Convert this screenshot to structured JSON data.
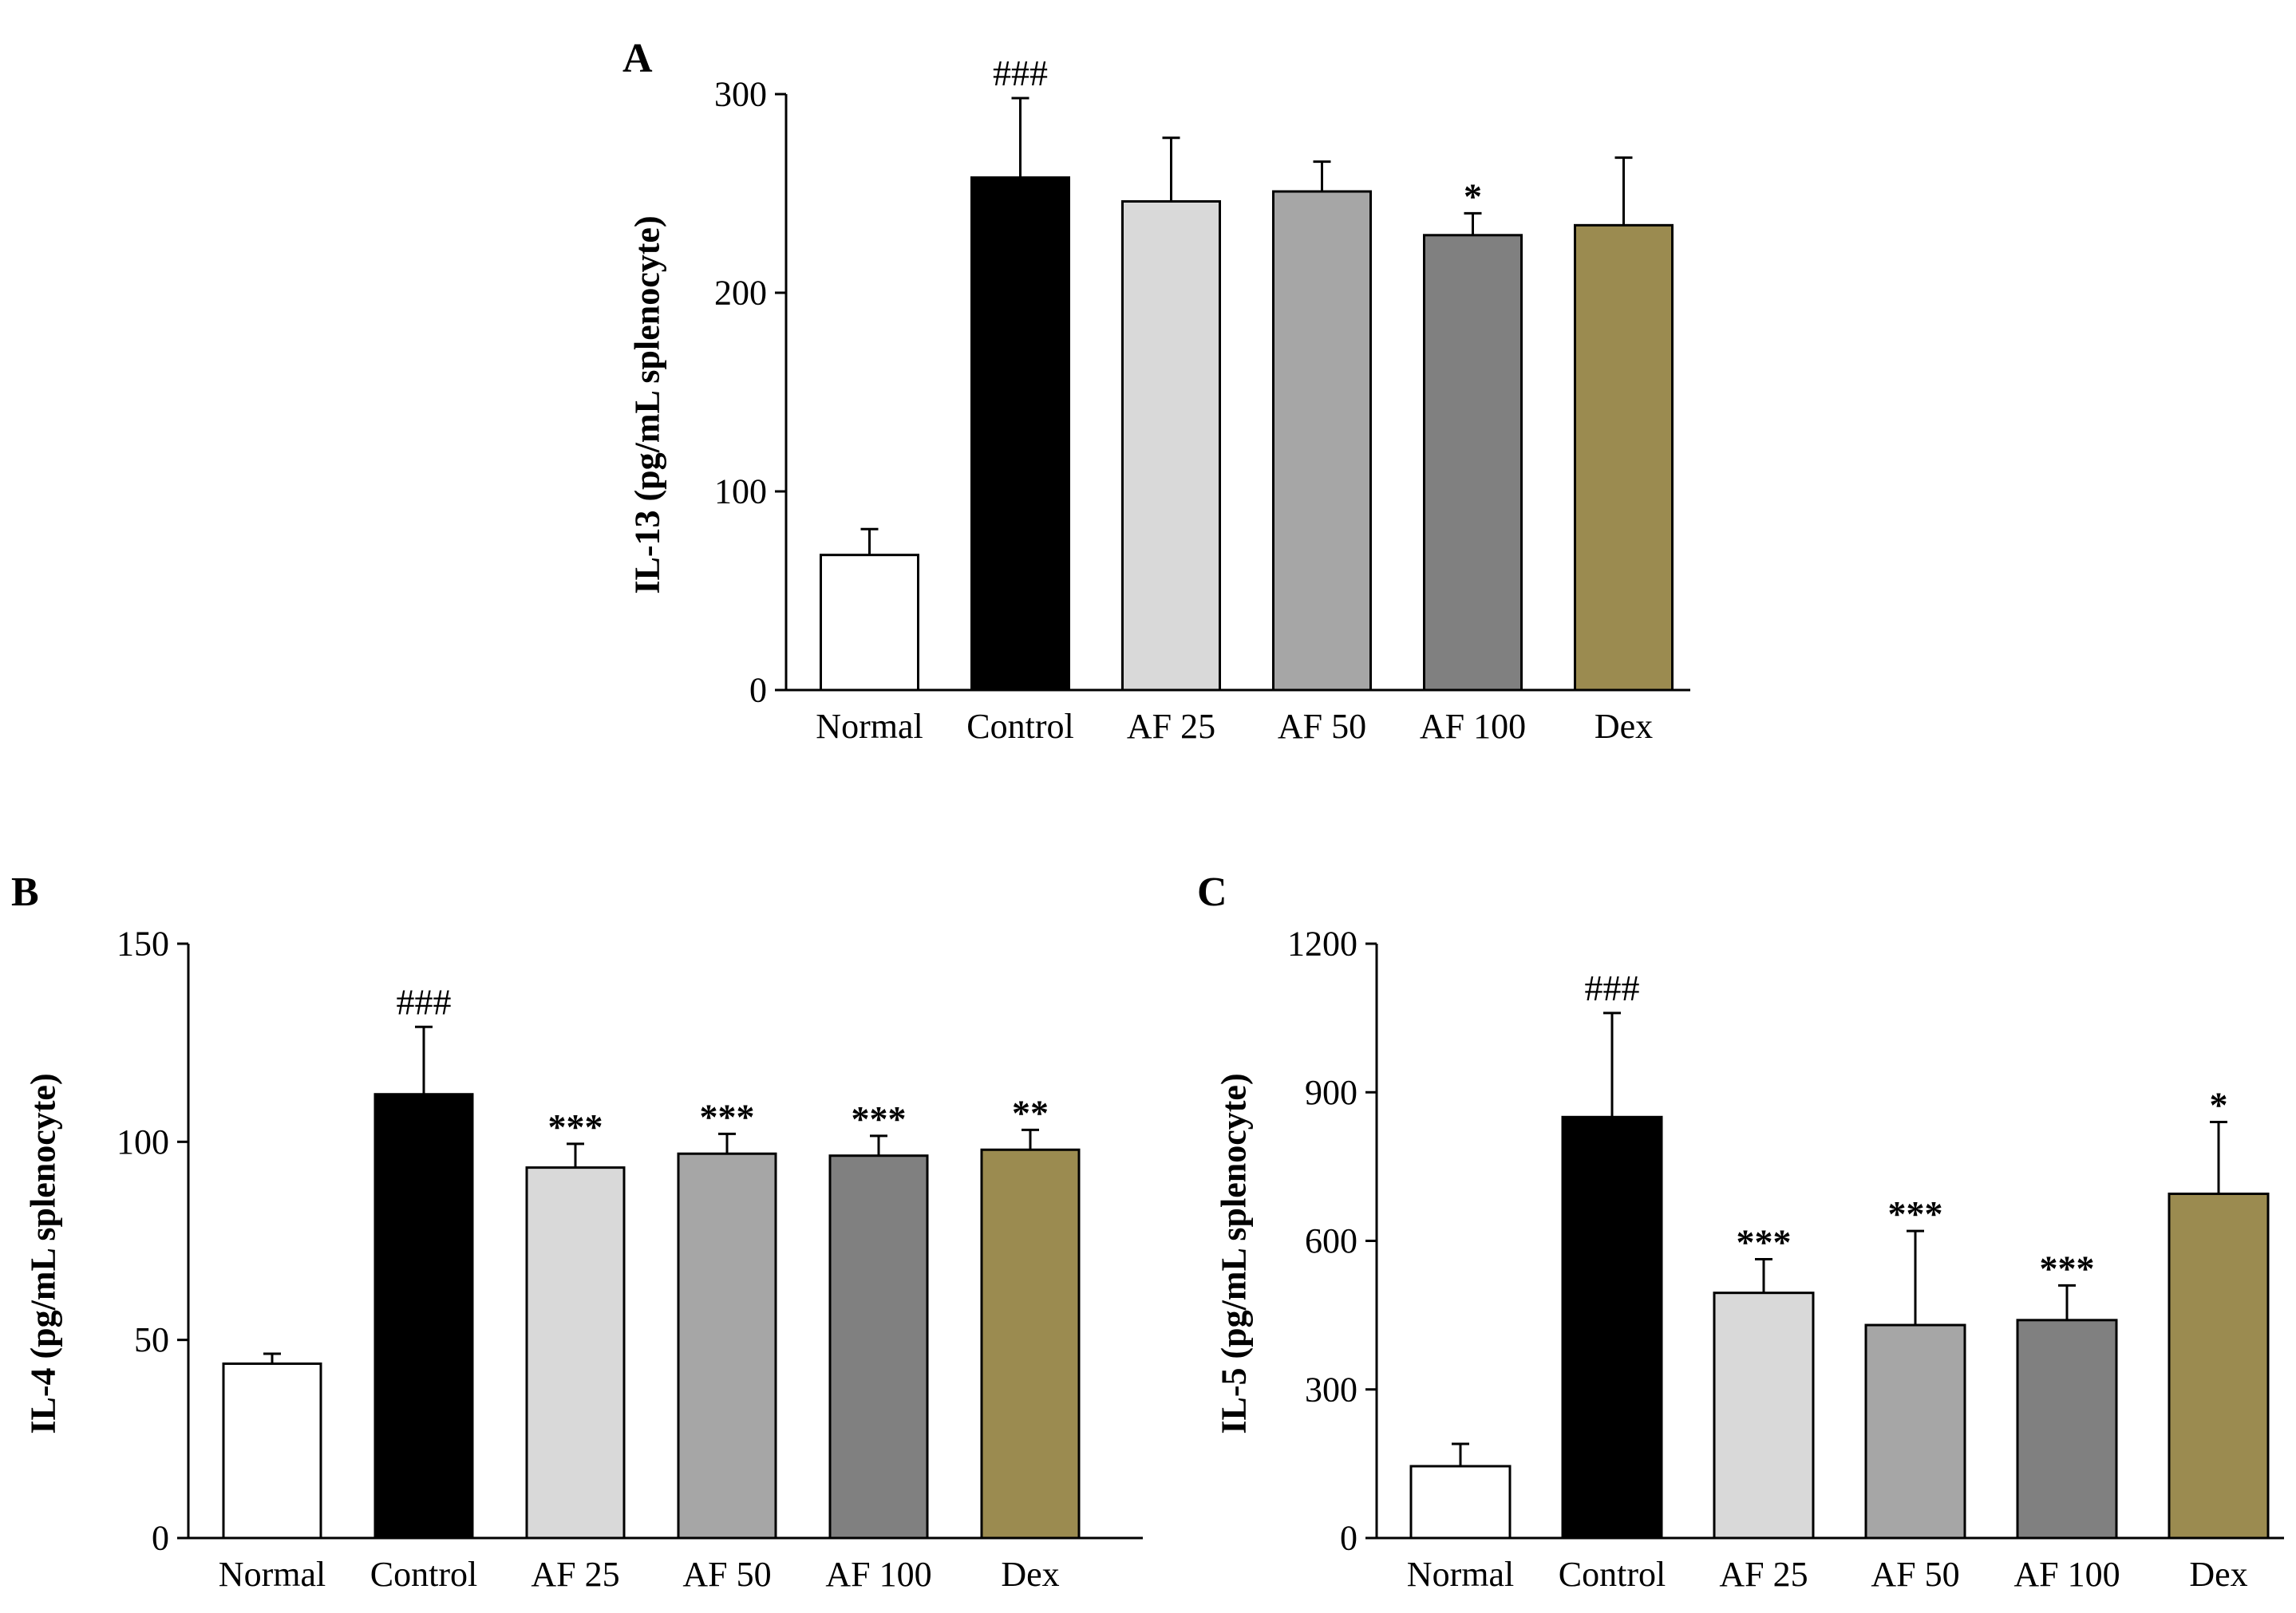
{
  "chart_data": [
    {
      "type": "bar",
      "panel": "A",
      "ylabel": "IL-13  (pg/mL splenocyte)",
      "categories": [
        "Normal",
        "Control",
        "AF 25",
        "AF 50",
        "AF 100",
        "Dex"
      ],
      "values": [
        68,
        258,
        246,
        251,
        229,
        234
      ],
      "errors": [
        13,
        40,
        32,
        15,
        11,
        34
      ],
      "colors": [
        "#ffffff",
        "#000000",
        "#d9d9d9",
        "#a6a6a6",
        "#808080",
        "#9b8b50"
      ],
      "significance": [
        "",
        "###",
        "",
        "",
        "*",
        ""
      ],
      "ylim": [
        0,
        300
      ],
      "yticks": [
        "0",
        "100",
        "200",
        "300"
      ]
    },
    {
      "type": "bar",
      "panel": "B",
      "ylabel": "IL-4  (pg/mL splenocyte)",
      "categories": [
        "Normal",
        "Control",
        "AF 25",
        "AF 50",
        "AF 100",
        "Dex"
      ],
      "values": [
        44,
        112,
        93.5,
        97,
        96.5,
        98
      ],
      "errors": [
        2.5,
        17,
        6,
        5,
        5,
        5
      ],
      "colors": [
        "#ffffff",
        "#000000",
        "#d9d9d9",
        "#a6a6a6",
        "#808080",
        "#9b8b50"
      ],
      "significance": [
        "",
        "###",
        "***",
        "***",
        "***",
        "**"
      ],
      "ylim": [
        0,
        150
      ],
      "yticks": [
        "0",
        "50",
        "100",
        "150"
      ]
    },
    {
      "type": "bar",
      "panel": "C",
      "ylabel": "IL-5  (pg/mL splenocyte)",
      "categories": [
        "Normal",
        "Control",
        "AF 25",
        "AF 50",
        "AF 100",
        "Dex"
      ],
      "values": [
        145,
        850,
        495,
        430,
        440,
        695
      ],
      "errors": [
        45,
        210,
        68,
        190,
        70,
        145
      ],
      "colors": [
        "#ffffff",
        "#000000",
        "#d9d9d9",
        "#a6a6a6",
        "#808080",
        "#9b8b50"
      ],
      "significance": [
        "",
        "###",
        "***",
        "***",
        "***",
        "*"
      ],
      "ylim": [
        0,
        1200
      ],
      "yticks": [
        "0",
        "300",
        "600",
        "900",
        "1200"
      ]
    }
  ]
}
